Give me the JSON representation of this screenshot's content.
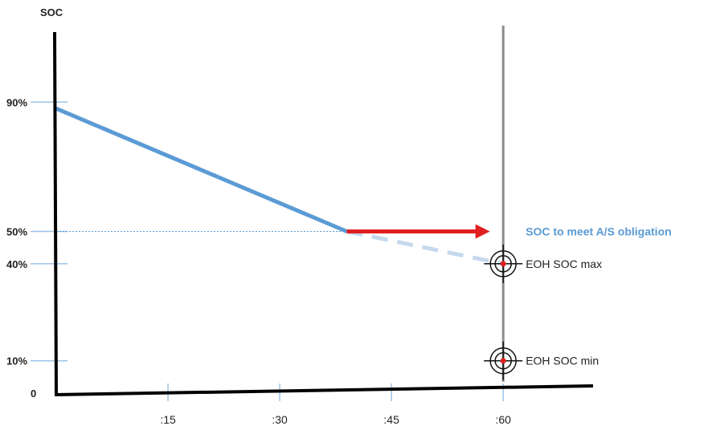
{
  "chart_data": {
    "type": "line",
    "ylabel": "SOC",
    "y_ticks": [
      {
        "value": 90,
        "label": "90%"
      },
      {
        "value": 50,
        "label": "50%"
      },
      {
        "value": 40,
        "label": "40%"
      },
      {
        "value": 10,
        "label": "10%"
      }
    ],
    "y_origin_label": "0",
    "x_ticks": [
      {
        "value": 15,
        "label": ":15"
      },
      {
        "value": 30,
        "label": ":30"
      },
      {
        "value": 45,
        "label": ":45"
      },
      {
        "value": 60,
        "label": ":60"
      }
    ],
    "xlim": [
      0,
      60
    ],
    "ylim": [
      0,
      100
    ],
    "series": [
      {
        "style": "solid",
        "color": "#5b9bd5",
        "x": [
          0,
          39
        ],
        "y": [
          88,
          50
        ]
      },
      {
        "style": "dashed",
        "color": "#c5d9ee",
        "x": [
          39,
          60
        ],
        "y": [
          50,
          40
        ]
      },
      {
        "style": "arrow",
        "color": "#e02020",
        "x": [
          39,
          58
        ],
        "y": [
          50,
          50
        ]
      }
    ],
    "reference_line": {
      "x": 39,
      "y": 50
    },
    "vertical_line_x": 60,
    "annotations": {
      "obligation": {
        "text": "SOC to meet A/S obligation",
        "x": 60,
        "y": 50
      },
      "eoh_max": {
        "text": "EOH SOC max",
        "x": 60,
        "y": 40
      },
      "eoh_min": {
        "text": "EOH SOC min",
        "x": 60,
        "y": 10
      }
    }
  }
}
